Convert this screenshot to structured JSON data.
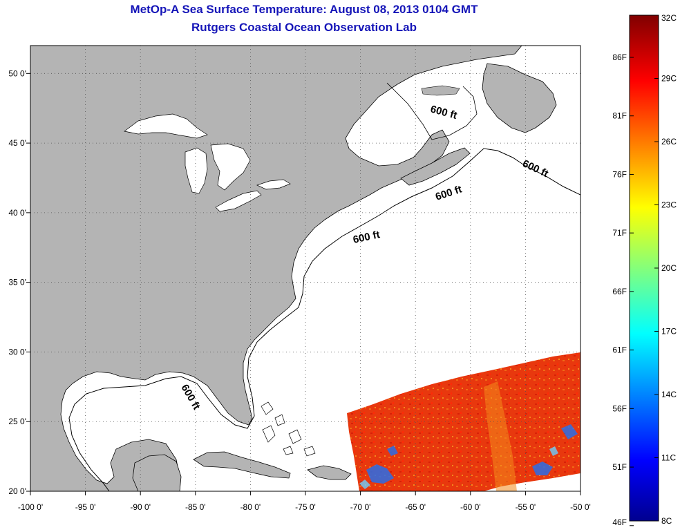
{
  "title": "MetOp-A Sea Surface Temperature:  August 08, 2013 0104 GMT",
  "subtitle": "Rutgers Coastal Ocean Observation Lab",
  "axes": {
    "x_ticks": [
      "-100 0'",
      "-95 0'",
      "-90 0'",
      "-85 0'",
      "-80 0'",
      "-75 0'",
      "-70 0'",
      "-65 0'",
      "-60 0'",
      "-55 0'",
      "-50 0'"
    ],
    "y_ticks": [
      "50 0'",
      "45 0'",
      "40 0'",
      "35 0'",
      "30 0'",
      "25 0'",
      "20 0'"
    ],
    "lon_range": [
      -100,
      -50
    ],
    "lat_range": [
      20,
      52
    ]
  },
  "isobath_labels": [
    "600 ft",
    "600 ft",
    "600 ft",
    "600 ft",
    "600 ft"
  ],
  "colorbar": {
    "fahrenheit_labels": [
      "86F",
      "81F",
      "76F",
      "71F",
      "66F",
      "61F",
      "56F",
      "51F",
      "46F"
    ],
    "celsius_labels": [
      "32C",
      "29C",
      "26C",
      "23C",
      "20C",
      "17C",
      "14C",
      "11C",
      "8C"
    ],
    "colormap": "jet",
    "range_c": [
      8,
      32
    ]
  },
  "colors": {
    "title": "#1515b8",
    "land": "#b4b4b4",
    "ocean": "#ffffff",
    "sst_warm": "#e83a10"
  }
}
